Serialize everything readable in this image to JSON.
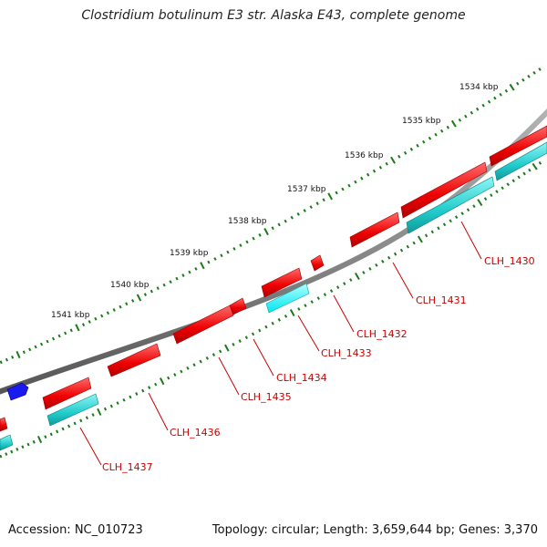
{
  "title": "Clostridium botulinum E3 str. Alaska E43, complete genome",
  "footer": {
    "accession": "Accession: NC_010723",
    "summary": "Topology: circular; Length: 3,659,644 bp; Genes: 3,370"
  },
  "colors": {
    "backbone": "#8a8a8a",
    "forward_gene": "#ee0000",
    "reverse_gene": "#22cccc",
    "other_gene": "#1a1aee",
    "tick": "#1a7a1a",
    "label_line": "#cc0000"
  },
  "ruler_ticks": [
    {
      "label": "1534 kbp"
    },
    {
      "label": "1535 kbp"
    },
    {
      "label": "1536 kbp"
    },
    {
      "label": "1537 kbp"
    },
    {
      "label": "1538 kbp"
    },
    {
      "label": "1539 kbp"
    },
    {
      "label": "1540 kbp"
    },
    {
      "label": "1541 kbp"
    }
  ],
  "gene_labels": [
    "CLH_1430",
    "CLH_1431",
    "CLH_1432",
    "CLH_1433",
    "CLH_1434",
    "CLH_1435",
    "CLH_1436",
    "CLH_1437"
  ]
}
